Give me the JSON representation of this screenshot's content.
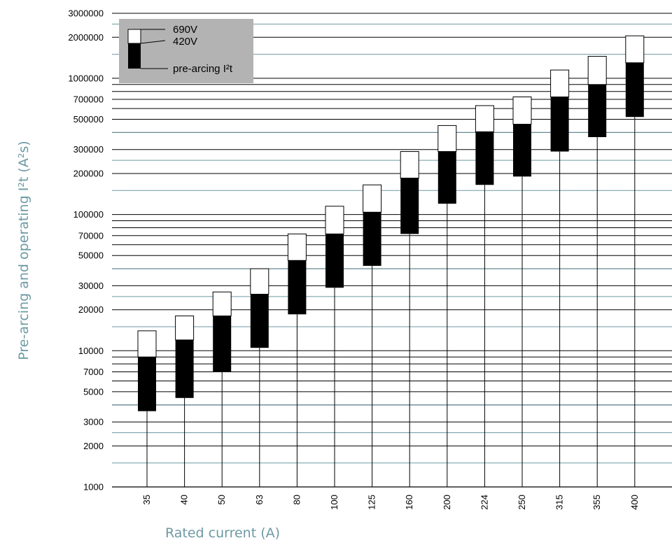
{
  "chart_data": {
    "type": "bar",
    "subtype": "floating-range (log scale)",
    "xlabel": "Rated current (A)",
    "ylabel": "Pre-arcing and operating I²t (A²s)",
    "y_scale": "log",
    "ylim": [
      1000,
      3000000
    ],
    "y_tick_labels": [
      "3000000",
      "2000000",
      "1000000",
      "700000",
      "500000",
      "300000",
      "200000",
      "100000",
      "70000",
      "50000",
      "30000",
      "20000",
      "10000",
      "7000",
      "5000",
      "3000",
      "2000",
      "1000"
    ],
    "y_ticks": [
      3000000,
      2000000,
      1000000,
      700000,
      500000,
      300000,
      200000,
      100000,
      70000,
      50000,
      30000,
      20000,
      10000,
      7000,
      5000,
      3000,
      2000,
      1000
    ],
    "categories": [
      "35",
      "40",
      "50",
      "63",
      "80",
      "100",
      "125",
      "160",
      "200",
      "224",
      "250",
      "315",
      "355",
      "400"
    ],
    "series": [
      {
        "name": "pre-arcing I²t",
        "values": [
          3600,
          4500,
          7000,
          10500,
          18500,
          29000,
          42000,
          72000,
          120000,
          165000,
          190000,
          290000,
          370000,
          520000
        ]
      },
      {
        "name": "420V",
        "values": [
          9000,
          12000,
          18000,
          26000,
          46000,
          72000,
          104000,
          185000,
          290000,
          405000,
          460000,
          730000,
          900000,
          1300000
        ]
      },
      {
        "name": "690V",
        "values": [
          14000,
          18000,
          27000,
          40000,
          72000,
          115000,
          165000,
          290000,
          450000,
          630000,
          730000,
          1150000,
          1450000,
          2050000
        ]
      }
    ],
    "legend": {
      "placement": "top-left",
      "entries": [
        "690V",
        "420V",
        "pre-arcing I²t"
      ]
    },
    "grid": true,
    "colors": {
      "black_gridline": "#000000",
      "teal_gridline": "#6d9aa3",
      "bar_420v": "#000000",
      "bar_690v": "#ffffff",
      "legend_background": "#b3b3b3",
      "axis_title": "#6d9aa3"
    }
  }
}
